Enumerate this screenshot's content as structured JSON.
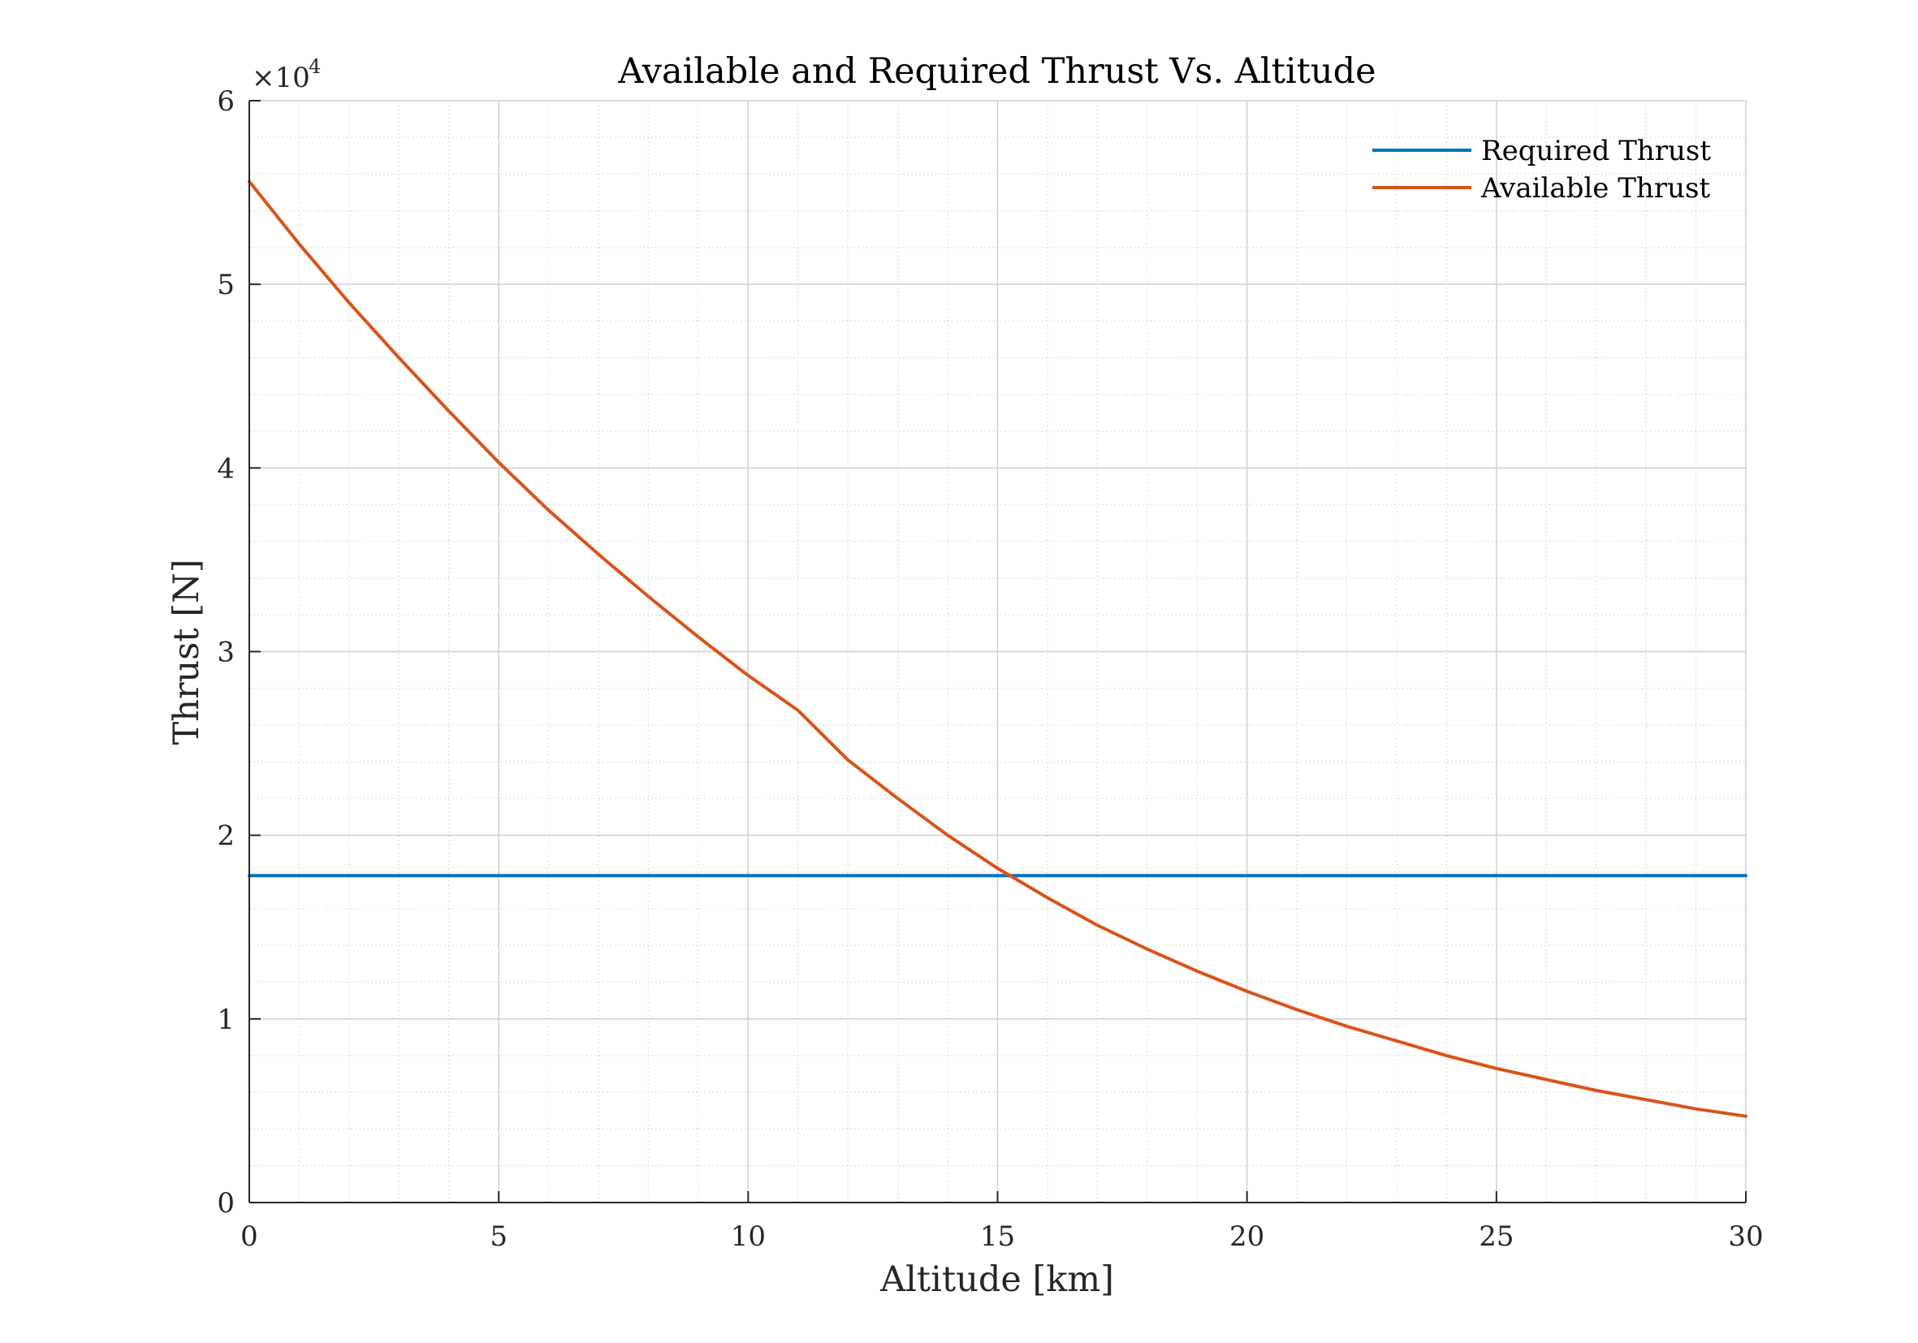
{
  "chart_data": {
    "type": "line",
    "title": "Available and Required Thrust Vs. Altitude",
    "xlabel": "Altitude [km]",
    "ylabel": "Thrust [N]",
    "xlim": [
      0,
      30
    ],
    "ylim": [
      0,
      60000
    ],
    "y_exponent_base": "×10",
    "y_exponent_power": "4",
    "xticks": [
      0,
      5,
      10,
      15,
      20,
      25,
      30
    ],
    "xtick_labels": [
      "0",
      "5",
      "10",
      "15",
      "20",
      "25",
      "30"
    ],
    "yticks": [
      0,
      10000,
      20000,
      30000,
      40000,
      50000,
      60000
    ],
    "ytick_labels": [
      "0",
      "1",
      "2",
      "3",
      "4",
      "5",
      "6"
    ],
    "grid": true,
    "minor_grid": true,
    "legend_position": "top-right",
    "series": [
      {
        "name": "Required Thrust",
        "color": "#0072BD",
        "x": [
          0,
          30
        ],
        "y": [
          17800,
          17800
        ]
      },
      {
        "name": "Available Thrust",
        "color": "#D95319",
        "x": [
          0,
          1,
          2,
          3,
          4,
          5,
          6,
          7,
          8,
          9,
          10,
          11,
          12,
          13,
          14,
          15,
          16,
          17,
          18,
          19,
          20,
          21,
          22,
          23,
          24,
          25,
          26,
          27,
          28,
          29,
          30
        ],
        "y": [
          55600,
          52200,
          49000,
          46000,
          43100,
          40300,
          37700,
          35300,
          33000,
          30800,
          28700,
          26800,
          24100,
          22000,
          20000,
          18200,
          16600,
          15100,
          13800,
          12600,
          11500,
          10500,
          9600,
          8800,
          8000,
          7300,
          6700,
          6100,
          5600,
          5100,
          4700
        ]
      }
    ]
  }
}
